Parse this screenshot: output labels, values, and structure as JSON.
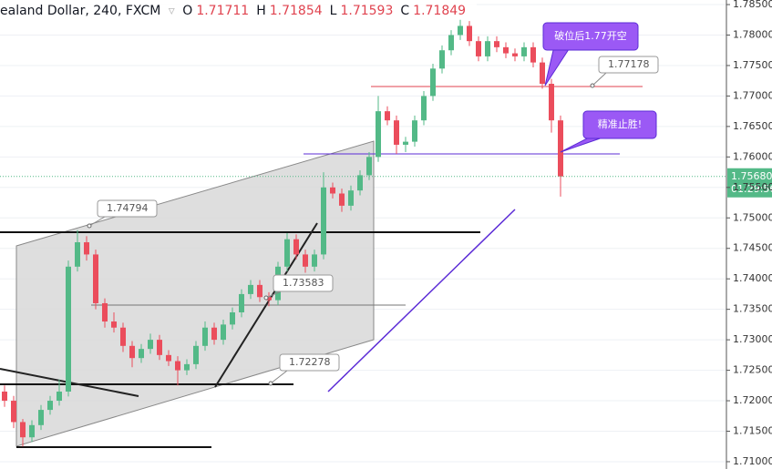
{
  "chart_data": {
    "type": "candlestick",
    "symbol": "ealand Dollar, 240, FXCM",
    "ohlc_legend": [
      {
        "label": "O",
        "value": 1.71711
      },
      {
        "label": "H",
        "value": 1.71854
      },
      {
        "label": "L",
        "value": 1.71593
      },
      {
        "label": "C",
        "value": 1.71849
      }
    ],
    "open": [
      1.7215,
      1.72,
      1.7165,
      1.714,
      1.716,
      1.7185,
      1.72,
      1.7215,
      1.742,
      1.746,
      1.744,
      1.736,
      1.733,
      1.732,
      1.729,
      1.727,
      1.7285,
      1.73,
      1.7275,
      1.7265,
      1.725,
      1.726,
      1.729,
      1.732,
      1.73,
      1.7325,
      1.7345,
      1.7375,
      1.739,
      1.737,
      1.7365,
      1.742,
      1.7465,
      1.744,
      1.742,
      1.744,
      1.755,
      1.754,
      1.752,
      1.7545,
      1.757,
      1.76,
      1.7675,
      1.766,
      1.762,
      1.7625,
      1.766,
      1.77,
      1.7745,
      1.7775,
      1.78,
      1.7815,
      1.779,
      1.7765,
      1.779,
      1.778,
      1.777,
      1.7765,
      1.778,
      1.7755,
      1.772,
      1.766
    ],
    "high": [
      1.7225,
      1.7208,
      1.717,
      1.7168,
      1.7193,
      1.7208,
      1.7235,
      1.743,
      1.748,
      1.747,
      1.7448,
      1.7368,
      1.7345,
      1.7328,
      1.7298,
      1.7293,
      1.731,
      1.7308,
      1.7283,
      1.7273,
      1.7268,
      1.7298,
      1.733,
      1.7328,
      1.7333,
      1.7353,
      1.7383,
      1.7398,
      1.7398,
      1.7378,
      1.7428,
      1.7475,
      1.7473,
      1.7448,
      1.7448,
      1.7575,
      1.7558,
      1.7548,
      1.7553,
      1.7578,
      1.7608,
      1.77,
      1.7683,
      1.7668,
      1.7633,
      1.7668,
      1.7708,
      1.7753,
      1.7783,
      1.7808,
      1.7825,
      1.7823,
      1.7798,
      1.7798,
      1.7798,
      1.7788,
      1.7778,
      1.7788,
      1.7788,
      1.7763,
      1.7728,
      1.7668
    ],
    "low": [
      1.719,
      1.7155,
      1.7125,
      1.7132,
      1.7152,
      1.7177,
      1.7192,
      1.7207,
      1.7412,
      1.743,
      1.735,
      1.732,
      1.7312,
      1.728,
      1.7255,
      1.7262,
      1.7277,
      1.7267,
      1.7257,
      1.7225,
      1.7242,
      1.7252,
      1.7282,
      1.7292,
      1.7292,
      1.7317,
      1.7337,
      1.7367,
      1.7362,
      1.7355,
      1.7357,
      1.7412,
      1.7432,
      1.741,
      1.7412,
      1.7432,
      1.7532,
      1.751,
      1.7512,
      1.7537,
      1.7562,
      1.7592,
      1.7652,
      1.7605,
      1.7608,
      1.7617,
      1.7652,
      1.7692,
      1.7737,
      1.7767,
      1.7792,
      1.7782,
      1.7757,
      1.7757,
      1.7772,
      1.7762,
      1.7757,
      1.7757,
      1.7747,
      1.7712,
      1.764,
      1.7535
    ],
    "close": [
      1.72,
      1.7165,
      1.714,
      1.716,
      1.7185,
      1.72,
      1.7215,
      1.742,
      1.746,
      1.744,
      1.736,
      1.733,
      1.732,
      1.729,
      1.727,
      1.7285,
      1.73,
      1.7275,
      1.7265,
      1.725,
      1.726,
      1.729,
      1.732,
      1.73,
      1.7325,
      1.7345,
      1.7375,
      1.739,
      1.737,
      1.7365,
      1.742,
      1.7465,
      1.744,
      1.742,
      1.744,
      1.755,
      1.754,
      1.752,
      1.7545,
      1.757,
      1.76,
      1.7675,
      1.766,
      1.762,
      1.7625,
      1.766,
      1.77,
      1.7745,
      1.7775,
      1.78,
      1.7815,
      1.779,
      1.7765,
      1.779,
      1.778,
      1.777,
      1.7765,
      1.778,
      1.7755,
      1.772,
      1.766,
      1.7568
    ],
    "up_color": "#53b987",
    "down_color": "#eb4d5c",
    "ylim": [
      1.7088,
      1.78575
    ],
    "yticks": [
      {
        "value": 1.71,
        "label": "1.71000"
      },
      {
        "value": 1.715,
        "label": "1.71500"
      },
      {
        "value": 1.72,
        "label": "1.72000"
      },
      {
        "value": 1.725,
        "label": "1.72500"
      },
      {
        "value": 1.73,
        "label": "1.73000"
      },
      {
        "value": 1.735,
        "label": "1.73500"
      },
      {
        "value": 1.74,
        "label": "1.74000"
      },
      {
        "value": 1.745,
        "label": "1.74500"
      },
      {
        "value": 1.75,
        "label": "1.75000"
      },
      {
        "value": 1.755,
        "label": "1.75500"
      },
      {
        "value": 1.76,
        "label": "1.76000"
      },
      {
        "value": 1.765,
        "label": "1.76500"
      },
      {
        "value": 1.77,
        "label": "1.77000"
      },
      {
        "value": 1.775,
        "label": "1.77500"
      },
      {
        "value": 1.78,
        "label": "1.78000"
      },
      {
        "value": 1.785,
        "label": "1.78500"
      }
    ],
    "grid": true,
    "current_price": {
      "value": 1.7568,
      "label": "1.75680"
    },
    "countdown": "01:29:56",
    "annotations": [
      "1.74794",
      "1.73583",
      "1.72278",
      "1.77178",
      "破位后1.77开空",
      "精准止胜!"
    ]
  }
}
